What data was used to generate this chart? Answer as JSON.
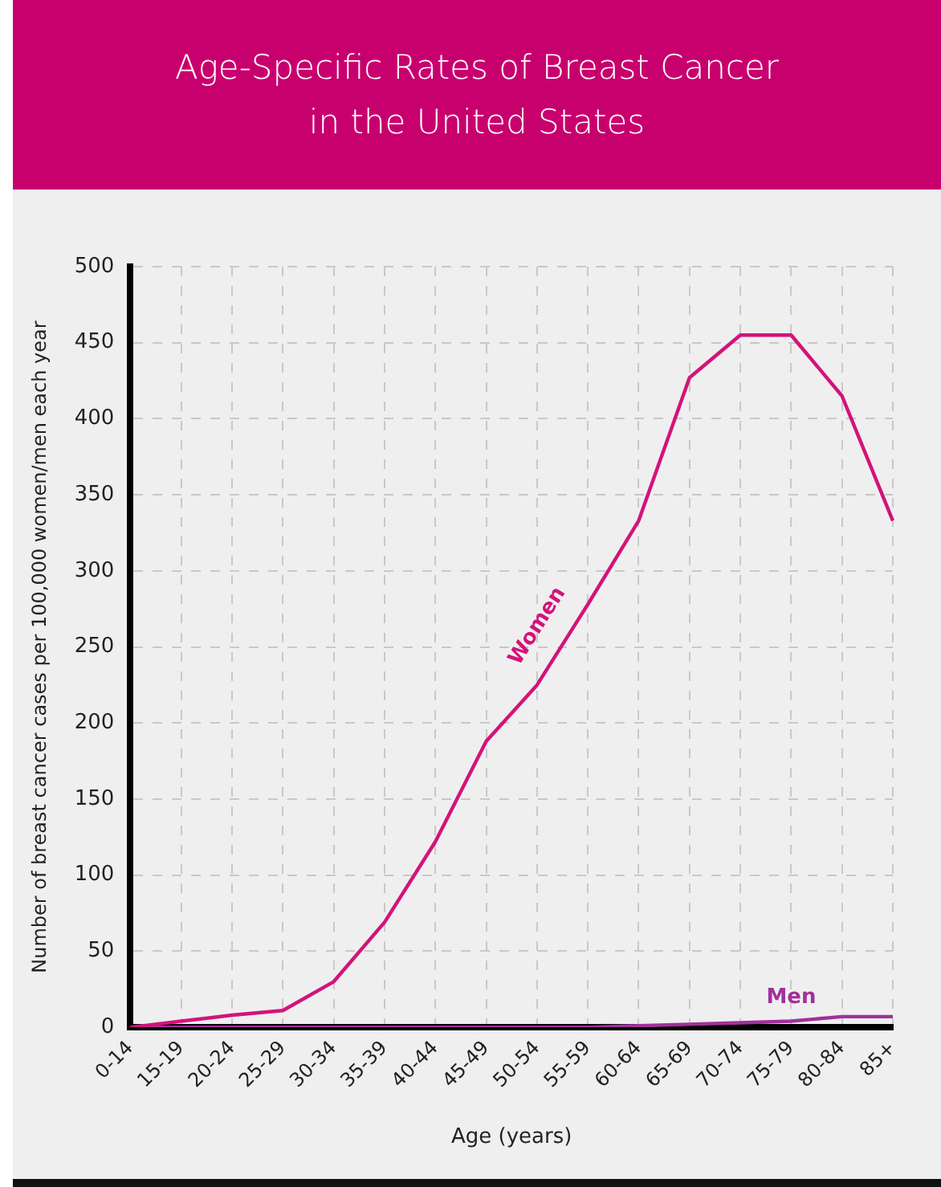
{
  "chart_data": {
    "type": "line",
    "title": "Age-Specific Rates of Breast Cancer in the United States",
    "xlabel": "Age (years)",
    "ylabel": "Number of breast cancer cases per 100,000 women/men each year",
    "categories": [
      "0-14",
      "15-19",
      "20-24",
      "25-29",
      "30-34",
      "35-39",
      "40-44",
      "45-49",
      "50-54",
      "55-59",
      "60-64",
      "65-69",
      "70-74",
      "75-79",
      "80-84",
      "85+"
    ],
    "series": [
      {
        "name": "Women",
        "color": "#d3137a",
        "values": [
          0,
          4,
          8,
          11,
          30,
          69,
          122,
          188,
          225,
          278,
          333,
          427,
          455,
          455,
          415,
          333
        ]
      },
      {
        "name": "Men",
        "color": "#a2309c",
        "values": [
          0,
          0,
          0,
          0,
          0,
          0,
          0,
          0,
          0,
          0,
          1,
          2,
          3,
          4,
          7,
          7
        ]
      }
    ],
    "ylim": [
      0,
      500
    ],
    "yticks": [
      0,
      50,
      100,
      150,
      200,
      250,
      300,
      350,
      400,
      450,
      500
    ],
    "grid": true,
    "legend": false,
    "marker": "none",
    "line_style": "solid"
  }
}
